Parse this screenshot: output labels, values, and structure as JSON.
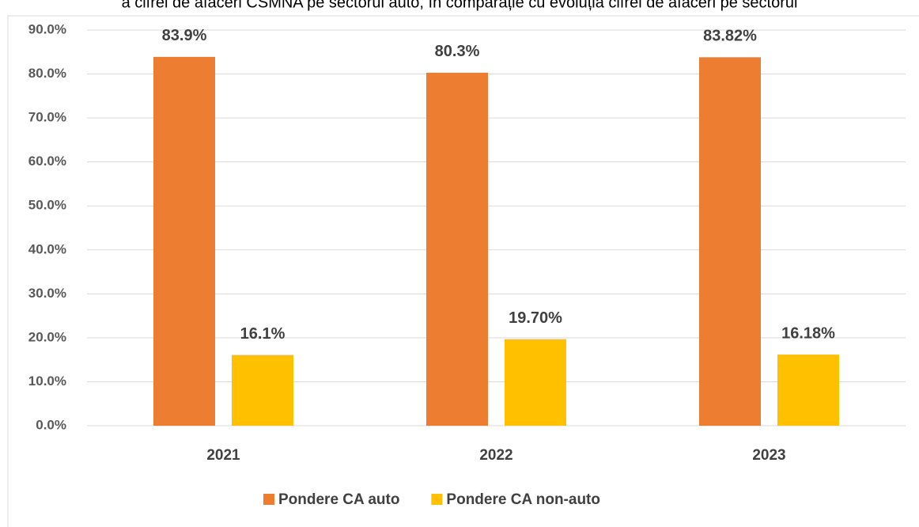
{
  "chart_data": {
    "type": "bar",
    "title": "a cifrei de afaceri CSMNA pe sectorul auto, în comparație cu evoluția cifrei de afaceri pe sectorul",
    "categories": [
      "2021",
      "2022",
      "2023"
    ],
    "series": [
      {
        "name": "Pondere CA auto",
        "color": "#ed7d31",
        "values": [
          83.9,
          80.3,
          83.82
        ],
        "value_labels": [
          "83.9%",
          "80.3%",
          "83.82%"
        ]
      },
      {
        "name": "Pondere CA non-auto",
        "color": "#ffc000",
        "values": [
          16.1,
          19.7,
          16.18
        ],
        "value_labels": [
          "16.1%",
          "19.70%",
          "16.18%"
        ]
      }
    ],
    "ylim": [
      0,
      90
    ],
    "yticks": [
      {
        "value": 0,
        "label": "0.0%"
      },
      {
        "value": 10,
        "label": "10.0%"
      },
      {
        "value": 20,
        "label": "20.0%"
      },
      {
        "value": 30,
        "label": "30.0%"
      },
      {
        "value": 40,
        "label": "40.0%"
      },
      {
        "value": 50,
        "label": "50.0%"
      },
      {
        "value": 60,
        "label": "60.0%"
      },
      {
        "value": 70,
        "label": "70.0%"
      },
      {
        "value": 80,
        "label": "80.0%"
      },
      {
        "value": 90,
        "label": "90.0%"
      }
    ],
    "grid": true,
    "legend": "bottom"
  }
}
